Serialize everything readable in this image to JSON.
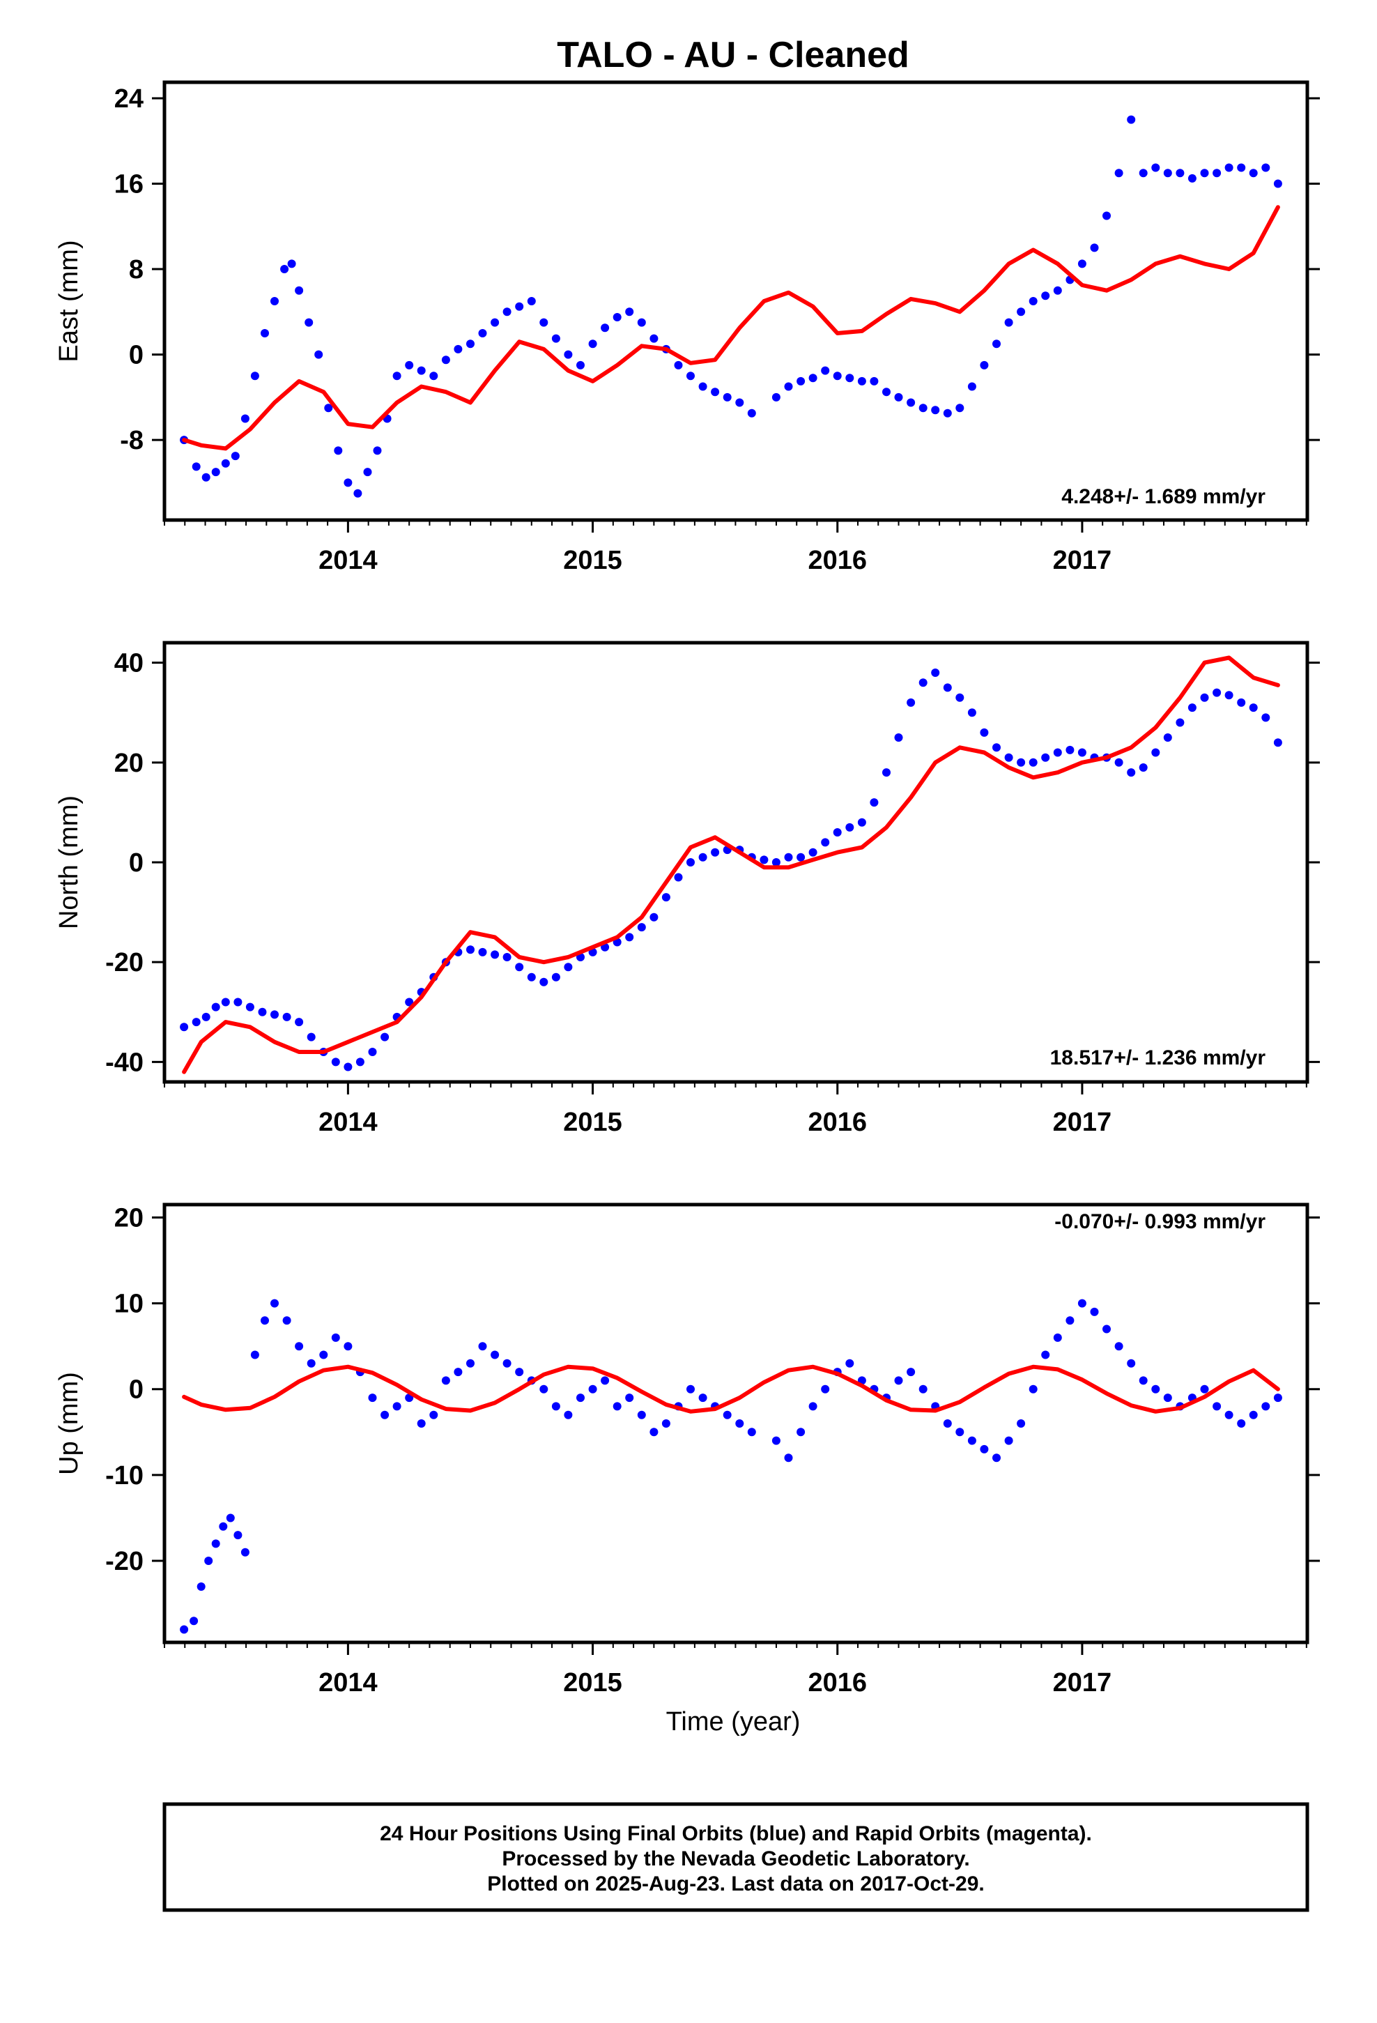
{
  "title": "TALO  - AU - Cleaned",
  "x_axis_label": "Time (year)",
  "footer": {
    "line1": "24 Hour Positions Using Final Orbits (blue) and Rapid Orbits (magenta).",
    "line2": "Processed by the Nevada Geodetic Laboratory.",
    "line3": "Plotted on 2025-Aug-23. Last data on 2017-Oct-29."
  },
  "colors": {
    "data": "#0000ff",
    "model": "#ff0000",
    "axis": "#000000"
  },
  "chart_data": [
    {
      "type": "scatter",
      "ylabel": "East (mm)",
      "rate_label": "4.248+/- 1.689 mm/yr",
      "xlim": [
        2013.25,
        2017.92
      ],
      "ylim": [
        -15.5,
        25.5
      ],
      "xticks": [
        2014,
        2015,
        2016,
        2017
      ],
      "yticks": [
        -8,
        0,
        8,
        16,
        24
      ],
      "series": [
        {
          "role": "observed",
          "color": "#0000ff",
          "x": [
            2013.33,
            2013.38,
            2013.42,
            2013.46,
            2013.5,
            2013.54,
            2013.58,
            2013.62,
            2013.66,
            2013.7,
            2013.74,
            2013.77,
            2013.8,
            2013.84,
            2013.88,
            2013.92,
            2013.96,
            2014.0,
            2014.04,
            2014.08,
            2014.12,
            2014.16,
            2014.2,
            2014.25,
            2014.3,
            2014.35,
            2014.4,
            2014.45,
            2014.5,
            2014.55,
            2014.6,
            2014.65,
            2014.7,
            2014.75,
            2014.8,
            2014.85,
            2014.9,
            2014.95,
            2015.0,
            2015.05,
            2015.1,
            2015.15,
            2015.2,
            2015.25,
            2015.3,
            2015.35,
            2015.4,
            2015.45,
            2015.5,
            2015.55,
            2015.6,
            2015.65,
            2015.75,
            2015.8,
            2015.85,
            2015.9,
            2015.95,
            2016.0,
            2016.05,
            2016.1,
            2016.15,
            2016.2,
            2016.25,
            2016.3,
            2016.35,
            2016.4,
            2016.45,
            2016.5,
            2016.55,
            2016.6,
            2016.65,
            2016.7,
            2016.75,
            2016.8,
            2016.85,
            2016.9,
            2016.95,
            2017.0,
            2017.05,
            2017.1,
            2017.15,
            2017.2,
            2017.25,
            2017.3,
            2017.35,
            2017.4,
            2017.45,
            2017.5,
            2017.55,
            2017.6,
            2017.65,
            2017.7,
            2017.75,
            2017.8
          ],
          "y": [
            -8,
            -10.5,
            -11.5,
            -11,
            -10.2,
            -9.5,
            -6,
            -2,
            2,
            5,
            8,
            8.5,
            6,
            3,
            0,
            -5,
            -9,
            -12,
            -13,
            -11,
            -9,
            -6,
            -2,
            -1,
            -1.5,
            -2,
            -0.5,
            0.5,
            1,
            2,
            3,
            4,
            4.5,
            5,
            3,
            1.5,
            0,
            -1,
            1,
            2.5,
            3.5,
            4,
            3,
            1.5,
            0.5,
            -1,
            -2,
            -3,
            -3.5,
            -4,
            -4.5,
            -5.5,
            -4,
            -3,
            -2.5,
            -2.2,
            -1.5,
            -2,
            -2.2,
            -2.5,
            -2.5,
            -3.5,
            -4,
            -4.5,
            -5,
            -5.2,
            -5.5,
            -5,
            -3,
            -1,
            1,
            3,
            4,
            5,
            5.5,
            6,
            7,
            8.5,
            10,
            13,
            17,
            22,
            17,
            17.5,
            17,
            17,
            16.5,
            17,
            17,
            17.5,
            17.5,
            17,
            17.5,
            16
          ]
        },
        {
          "role": "model",
          "color": "#ff0000",
          "x": [
            2013.33,
            2013.4,
            2013.5,
            2013.6,
            2013.7,
            2013.8,
            2013.9,
            2014.0,
            2014.1,
            2014.2,
            2014.3,
            2014.4,
            2014.5,
            2014.6,
            2014.7,
            2014.8,
            2014.9,
            2015.0,
            2015.1,
            2015.2,
            2015.3,
            2015.4,
            2015.5,
            2015.6,
            2015.7,
            2015.8,
            2015.9,
            2016.0,
            2016.1,
            2016.2,
            2016.3,
            2016.4,
            2016.5,
            2016.6,
            2016.7,
            2016.8,
            2016.9,
            2017.0,
            2017.1,
            2017.2,
            2017.3,
            2017.4,
            2017.5,
            2017.6,
            2017.7,
            2017.8
          ],
          "y": [
            -8,
            -8.5,
            -8.8,
            -7,
            -4.5,
            -2.5,
            -3.5,
            -6.5,
            -6.8,
            -4.5,
            -3,
            -3.5,
            -4.5,
            -1.5,
            1.2,
            0.5,
            -1.5,
            -2.5,
            -1,
            0.8,
            0.5,
            -0.8,
            -0.5,
            2.5,
            5,
            5.8,
            4.5,
            2,
            2.2,
            3.8,
            5.2,
            4.8,
            4,
            6,
            8.5,
            9.8,
            8.5,
            6.5,
            6,
            7,
            8.5,
            9.2,
            8.5,
            8,
            9.5,
            13.8
          ]
        }
      ]
    },
    {
      "type": "scatter",
      "ylabel": "North (mm)",
      "rate_label": "18.517+/- 1.236 mm/yr",
      "xlim": [
        2013.25,
        2017.92
      ],
      "ylim": [
        -44,
        44
      ],
      "xticks": [
        2014,
        2015,
        2016,
        2017
      ],
      "yticks": [
        -40,
        -20,
        0,
        20,
        40
      ],
      "series": [
        {
          "role": "observed",
          "color": "#0000ff",
          "x": [
            2013.33,
            2013.38,
            2013.42,
            2013.46,
            2013.5,
            2013.55,
            2013.6,
            2013.65,
            2013.7,
            2013.75,
            2013.8,
            2013.85,
            2013.9,
            2013.95,
            2014.0,
            2014.05,
            2014.1,
            2014.15,
            2014.2,
            2014.25,
            2014.3,
            2014.35,
            2014.4,
            2014.45,
            2014.5,
            2014.55,
            2014.6,
            2014.65,
            2014.7,
            2014.75,
            2014.8,
            2014.85,
            2014.9,
            2014.95,
            2015.0,
            2015.05,
            2015.1,
            2015.15,
            2015.2,
            2015.25,
            2015.3,
            2015.35,
            2015.4,
            2015.45,
            2015.5,
            2015.55,
            2015.6,
            2015.65,
            2015.7,
            2015.75,
            2015.8,
            2015.85,
            2015.9,
            2015.95,
            2016.0,
            2016.05,
            2016.1,
            2016.15,
            2016.2,
            2016.25,
            2016.3,
            2016.35,
            2016.4,
            2016.45,
            2016.5,
            2016.55,
            2016.6,
            2016.65,
            2016.7,
            2016.75,
            2016.8,
            2016.85,
            2016.9,
            2016.95,
            2017.0,
            2017.05,
            2017.1,
            2017.15,
            2017.2,
            2017.25,
            2017.3,
            2017.35,
            2017.4,
            2017.45,
            2017.5,
            2017.55,
            2017.6,
            2017.65,
            2017.7,
            2017.75,
            2017.8
          ],
          "y": [
            -33,
            -32,
            -31,
            -29,
            -28,
            -28,
            -29,
            -30,
            -30.5,
            -31,
            -32,
            -35,
            -38,
            -40,
            -41,
            -40,
            -38,
            -35,
            -31,
            -28,
            -26,
            -23,
            -20,
            -18,
            -17.5,
            -18,
            -18.5,
            -19,
            -21,
            -23,
            -24,
            -23,
            -21,
            -19,
            -18,
            -17,
            -16,
            -15,
            -13,
            -11,
            -7,
            -3,
            0,
            1,
            2,
            2.5,
            2.5,
            1,
            0.5,
            0,
            1,
            1,
            2,
            4,
            6,
            7,
            8,
            12,
            18,
            25,
            32,
            36,
            38,
            35,
            33,
            30,
            26,
            23,
            21,
            20,
            20,
            21,
            22,
            22.5,
            22,
            21,
            21,
            20,
            18,
            19,
            22,
            25,
            28,
            31,
            33,
            34,
            33.5,
            32,
            31,
            29,
            24
          ]
        },
        {
          "role": "model",
          "color": "#ff0000",
          "x": [
            2013.33,
            2013.4,
            2013.5,
            2013.6,
            2013.7,
            2013.8,
            2013.9,
            2014.0,
            2014.1,
            2014.2,
            2014.3,
            2014.4,
            2014.5,
            2014.6,
            2014.7,
            2014.8,
            2014.9,
            2015.0,
            2015.1,
            2015.2,
            2015.3,
            2015.4,
            2015.5,
            2015.6,
            2015.7,
            2015.8,
            2015.9,
            2016.0,
            2016.1,
            2016.2,
            2016.3,
            2016.4,
            2016.5,
            2016.6,
            2016.7,
            2016.8,
            2016.9,
            2017.0,
            2017.1,
            2017.2,
            2017.3,
            2017.4,
            2017.5,
            2017.6,
            2017.7,
            2017.8
          ],
          "y": [
            -42,
            -36,
            -32,
            -33,
            -36,
            -38,
            -38,
            -36,
            -34,
            -32,
            -27,
            -20,
            -14,
            -15,
            -19,
            -20,
            -19,
            -17,
            -15,
            -11,
            -4,
            3,
            5,
            2,
            -1,
            -1,
            0.5,
            2,
            3,
            7,
            13,
            20,
            23,
            22,
            19,
            17,
            18,
            20,
            21,
            23,
            27,
            33,
            40,
            41,
            37,
            35.5
          ]
        }
      ]
    },
    {
      "type": "scatter",
      "ylabel": "Up (mm)",
      "rate_label": "-0.070+/- 0.993 mm/yr",
      "xlim": [
        2013.25,
        2017.92
      ],
      "ylim": [
        -29.5,
        21.5
      ],
      "xticks": [
        2014,
        2015,
        2016,
        2017
      ],
      "yticks": [
        -20,
        -10,
        0,
        10,
        20
      ],
      "series": [
        {
          "role": "observed",
          "color": "#0000ff",
          "x": [
            2013.33,
            2013.37,
            2013.4,
            2013.43,
            2013.46,
            2013.49,
            2013.52,
            2013.55,
            2013.58,
            2013.62,
            2013.66,
            2013.7,
            2013.75,
            2013.8,
            2013.85,
            2013.9,
            2013.95,
            2014.0,
            2014.05,
            2014.1,
            2014.15,
            2014.2,
            2014.25,
            2014.3,
            2014.35,
            2014.4,
            2014.45,
            2014.5,
            2014.55,
            2014.6,
            2014.65,
            2014.7,
            2014.75,
            2014.8,
            2014.85,
            2014.9,
            2014.95,
            2015.0,
            2015.05,
            2015.1,
            2015.15,
            2015.2,
            2015.25,
            2015.3,
            2015.35,
            2015.4,
            2015.45,
            2015.5,
            2015.55,
            2015.6,
            2015.65,
            2015.75,
            2015.8,
            2015.85,
            2015.9,
            2015.95,
            2016.0,
            2016.05,
            2016.1,
            2016.15,
            2016.2,
            2016.25,
            2016.3,
            2016.35,
            2016.4,
            2016.45,
            2016.5,
            2016.55,
            2016.6,
            2016.65,
            2016.7,
            2016.75,
            2016.8,
            2016.85,
            2016.9,
            2016.95,
            2017.0,
            2017.05,
            2017.1,
            2017.15,
            2017.2,
            2017.25,
            2017.3,
            2017.35,
            2017.4,
            2017.45,
            2017.5,
            2017.55,
            2017.6,
            2017.65,
            2017.7,
            2017.75,
            2017.8
          ],
          "y": [
            -28,
            -27,
            -23,
            -20,
            -18,
            -16,
            -15,
            -17,
            -19,
            4,
            8,
            10,
            8,
            5,
            3,
            4,
            6,
            5,
            2,
            -1,
            -3,
            -2,
            -1,
            -4,
            -3,
            1,
            2,
            3,
            5,
            4,
            3,
            2,
            1,
            0,
            -2,
            -3,
            -1,
            0,
            1,
            -2,
            -1,
            -3,
            -5,
            -4,
            -2,
            0,
            -1,
            -2,
            -3,
            -4,
            -5,
            -6,
            -8,
            -5,
            -2,
            0,
            2,
            3,
            1,
            0,
            -1,
            1,
            2,
            0,
            -2,
            -4,
            -5,
            -6,
            -7,
            -8,
            -6,
            -4,
            0,
            4,
            6,
            8,
            10,
            9,
            7,
            5,
            3,
            1,
            0,
            -1,
            -2,
            -1,
            0,
            -2,
            -3,
            -4,
            -3,
            -2,
            -1
          ]
        },
        {
          "role": "model",
          "color": "#ff0000",
          "x": [
            2013.33,
            2013.4,
            2013.5,
            2013.6,
            2013.7,
            2013.8,
            2013.9,
            2014.0,
            2014.1,
            2014.2,
            2014.3,
            2014.4,
            2014.5,
            2014.6,
            2014.7,
            2014.8,
            2014.9,
            2015.0,
            2015.1,
            2015.2,
            2015.3,
            2015.4,
            2015.5,
            2015.6,
            2015.7,
            2015.8,
            2015.9,
            2016.0,
            2016.1,
            2016.2,
            2016.3,
            2016.4,
            2016.5,
            2016.6,
            2016.7,
            2016.8,
            2016.9,
            2017.0,
            2017.1,
            2017.2,
            2017.3,
            2017.4,
            2017.5,
            2017.6,
            2017.7,
            2017.8
          ],
          "y": [
            -0.9,
            -1.8,
            -2.4,
            -2.2,
            -0.9,
            0.9,
            2.2,
            2.6,
            1.9,
            0.5,
            -1.2,
            -2.3,
            -2.5,
            -1.6,
            0,
            1.7,
            2.6,
            2.4,
            1.3,
            -0.3,
            -1.8,
            -2.6,
            -2.3,
            -1,
            0.8,
            2.2,
            2.6,
            1.8,
            0.4,
            -1.3,
            -2.4,
            -2.5,
            -1.5,
            0.2,
            1.8,
            2.6,
            2.3,
            1.1,
            -0.5,
            -1.9,
            -2.6,
            -2.2,
            -0.9,
            0.9,
            2.2,
            0
          ]
        }
      ]
    }
  ]
}
